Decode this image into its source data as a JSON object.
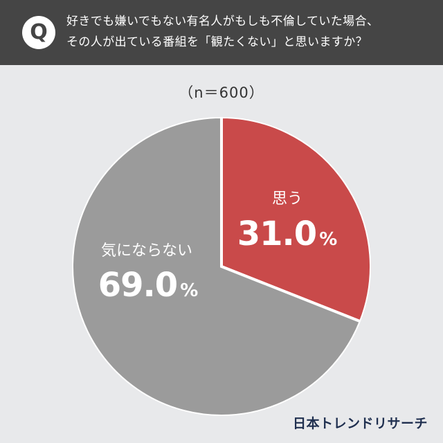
{
  "header": {
    "badge": "Q",
    "question_line1": "好きでも嫌いでもない有名人がもしも不倫していた場合、",
    "question_line2": "その人が出ている番組を「観たくない」と思いますか？"
  },
  "sample": "（n＝600）",
  "chart_data": {
    "type": "pie",
    "slices": [
      {
        "label": "思う",
        "value": 31.0,
        "value_text": "31.0",
        "unit": "%",
        "color": "#c94a4a"
      },
      {
        "label": "気にならない",
        "value": 69.0,
        "value_text": "69.0",
        "unit": "%",
        "color": "#9b9b9b"
      }
    ],
    "start": "12 o'clock, clockwise",
    "slice_separator_color": "#ffffff"
  },
  "logo": "日本トレンドリサーチ",
  "colors": {
    "background": "#e8e9eb",
    "header": "#454545",
    "accent_red": "#c94a4a",
    "gray": "#9b9b9b",
    "logo": "#1f2f4f"
  }
}
